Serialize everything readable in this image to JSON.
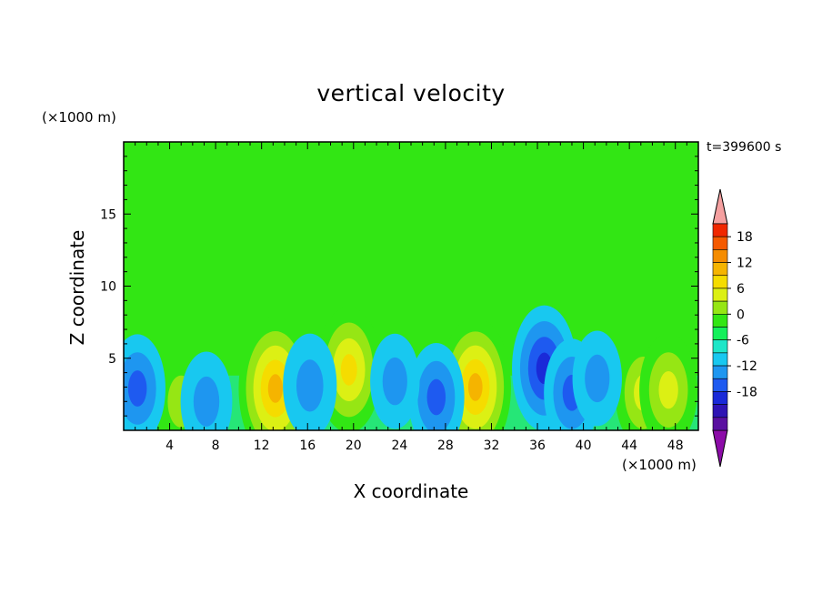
{
  "chart_data": {
    "type": "heatmap",
    "title": "vertical velocity",
    "xlabel": "X coordinate",
    "ylabel": "Z coordinate",
    "x_unit": "(×1000 m)",
    "y_unit": "(×1000 m)",
    "time_label": "t=399600 s",
    "xlim": [
      0,
      50
    ],
    "ylim": [
      0,
      20
    ],
    "x_ticks": [
      4,
      8,
      12,
      16,
      20,
      24,
      28,
      32,
      36,
      40,
      44,
      48
    ],
    "y_ticks": [
      5,
      10,
      15
    ],
    "colorbar": {
      "ticks": [
        18,
        12,
        6,
        0,
        -6,
        -12,
        -18
      ],
      "levels": [
        -21,
        -18,
        -15,
        -12,
        -9,
        -6,
        -3,
        0,
        3,
        6,
        9,
        12,
        15,
        18,
        21
      ],
      "colors": [
        "#8c0ca8",
        "#5a10a0",
        "#2f14b4",
        "#1a2ad8",
        "#1e5af0",
        "#1e96f0",
        "#18c8f0",
        "#1ee6c8",
        "#14f05a",
        "#32e614",
        "#96e614",
        "#dcf014",
        "#f5dc00",
        "#f5b400",
        "#f58c00",
        "#f55a00",
        "#f02800",
        "#f5a0a0"
      ]
    },
    "features": [
      {
        "kind": "updraft",
        "x": 13.2,
        "z": 2.9,
        "peak": 17
      },
      {
        "kind": "updraft",
        "x": 19.6,
        "z": 4.2,
        "peak": 13
      },
      {
        "kind": "updraft",
        "x": 30.6,
        "z": 3.0,
        "peak": 16
      },
      {
        "kind": "updraft",
        "x": 45.2,
        "z": 2.6,
        "peak": 9
      },
      {
        "kind": "updraft",
        "x": 47.4,
        "z": 2.8,
        "peak": 10
      },
      {
        "kind": "updraft",
        "x": 5.0,
        "z": 2.0,
        "peak": 8
      },
      {
        "kind": "downdraft",
        "x": 36.6,
        "z": 4.3,
        "peak": -13
      },
      {
        "kind": "downdraft",
        "x": 39.0,
        "z": 2.6,
        "peak": -9
      },
      {
        "kind": "downdraft",
        "x": 1.2,
        "z": 2.9,
        "peak": -9
      },
      {
        "kind": "downdraft",
        "x": 27.2,
        "z": 2.3,
        "peak": -9
      },
      {
        "kind": "downdraft",
        "x": 16.2,
        "z": 3.1,
        "peak": -8
      },
      {
        "kind": "downdraft",
        "x": 7.2,
        "z": 2.0,
        "peak": -7
      },
      {
        "kind": "downdraft",
        "x": 23.6,
        "z": 3.4,
        "peak": -6
      },
      {
        "kind": "downdraft",
        "x": 41.2,
        "z": 3.6,
        "peak": -6
      }
    ]
  }
}
